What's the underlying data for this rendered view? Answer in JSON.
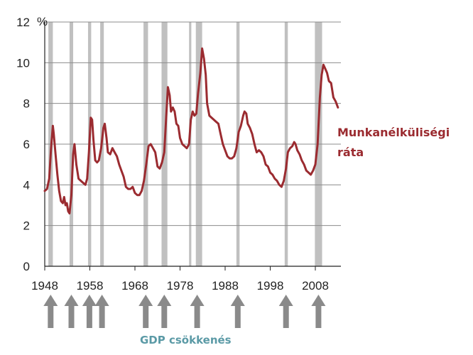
{
  "chart_data": {
    "type": "line",
    "ylabel": "%",
    "ylim": [
      0,
      12
    ],
    "xlim": [
      1948,
      2014
    ],
    "grid": true,
    "y_ticks": [
      0,
      2,
      4,
      6,
      8,
      10,
      12
    ],
    "x_ticks": [
      1948,
      1958,
      1968,
      1978,
      1988,
      1998,
      2008
    ],
    "series": [
      {
        "name": "Munkanélküliségi ráta",
        "color": "#9b2b30",
        "points": [
          [
            1948.0,
            3.7
          ],
          [
            1948.5,
            3.8
          ],
          [
            1949.0,
            4.3
          ],
          [
            1949.4,
            5.8
          ],
          [
            1949.8,
            6.9
          ],
          [
            1950.0,
            6.5
          ],
          [
            1950.4,
            5.5
          ],
          [
            1950.8,
            4.5
          ],
          [
            1951.2,
            3.7
          ],
          [
            1951.6,
            3.2
          ],
          [
            1952.0,
            3.1
          ],
          [
            1952.3,
            3.4
          ],
          [
            1952.6,
            3.0
          ],
          [
            1952.9,
            3.1
          ],
          [
            1953.2,
            2.7
          ],
          [
            1953.5,
            2.6
          ],
          [
            1953.9,
            3.5
          ],
          [
            1954.3,
            5.5
          ],
          [
            1954.6,
            6.0
          ],
          [
            1955.0,
            5.0
          ],
          [
            1955.5,
            4.3
          ],
          [
            1956.0,
            4.2
          ],
          [
            1956.5,
            4.1
          ],
          [
            1957.0,
            4.0
          ],
          [
            1957.4,
            4.3
          ],
          [
            1957.8,
            5.6
          ],
          [
            1958.2,
            7.3
          ],
          [
            1958.5,
            7.2
          ],
          [
            1958.8,
            6.2
          ],
          [
            1959.2,
            5.2
          ],
          [
            1959.6,
            5.1
          ],
          [
            1960.0,
            5.2
          ],
          [
            1960.5,
            5.8
          ],
          [
            1961.0,
            6.8
          ],
          [
            1961.3,
            7.0
          ],
          [
            1961.7,
            6.3
          ],
          [
            1962.0,
            5.6
          ],
          [
            1962.5,
            5.5
          ],
          [
            1963.0,
            5.8
          ],
          [
            1963.5,
            5.6
          ],
          [
            1964.0,
            5.4
          ],
          [
            1964.5,
            5.0
          ],
          [
            1965.0,
            4.7
          ],
          [
            1965.5,
            4.4
          ],
          [
            1966.0,
            3.9
          ],
          [
            1966.5,
            3.8
          ],
          [
            1967.0,
            3.8
          ],
          [
            1967.5,
            3.9
          ],
          [
            1968.0,
            3.6
          ],
          [
            1968.5,
            3.5
          ],
          [
            1969.0,
            3.5
          ],
          [
            1969.5,
            3.7
          ],
          [
            1970.0,
            4.2
          ],
          [
            1970.5,
            5.0
          ],
          [
            1971.0,
            5.9
          ],
          [
            1971.5,
            6.0
          ],
          [
            1972.0,
            5.8
          ],
          [
            1972.5,
            5.6
          ],
          [
            1973.0,
            4.9
          ],
          [
            1973.5,
            4.8
          ],
          [
            1974.0,
            5.1
          ],
          [
            1974.5,
            5.6
          ],
          [
            1974.9,
            7.2
          ],
          [
            1975.3,
            8.8
          ],
          [
            1975.7,
            8.4
          ],
          [
            1976.0,
            7.6
          ],
          [
            1976.4,
            7.8
          ],
          [
            1976.8,
            7.6
          ],
          [
            1977.2,
            7.0
          ],
          [
            1977.6,
            6.9
          ],
          [
            1978.0,
            6.3
          ],
          [
            1978.5,
            6.0
          ],
          [
            1979.0,
            5.9
          ],
          [
            1979.5,
            5.8
          ],
          [
            1980.0,
            6.0
          ],
          [
            1980.4,
            7.2
          ],
          [
            1980.8,
            7.6
          ],
          [
            1981.2,
            7.4
          ],
          [
            1981.6,
            7.5
          ],
          [
            1982.0,
            8.5
          ],
          [
            1982.5,
            9.5
          ],
          [
            1982.9,
            10.7
          ],
          [
            1983.3,
            10.2
          ],
          [
            1983.7,
            9.4
          ],
          [
            1984.0,
            8.0
          ],
          [
            1984.5,
            7.4
          ],
          [
            1985.0,
            7.3
          ],
          [
            1985.5,
            7.2
          ],
          [
            1986.0,
            7.1
          ],
          [
            1986.5,
            7.0
          ],
          [
            1987.0,
            6.5
          ],
          [
            1987.5,
            6.0
          ],
          [
            1988.0,
            5.7
          ],
          [
            1988.5,
            5.4
          ],
          [
            1989.0,
            5.3
          ],
          [
            1989.5,
            5.3
          ],
          [
            1990.0,
            5.4
          ],
          [
            1990.5,
            5.8
          ],
          [
            1991.0,
            6.6
          ],
          [
            1991.5,
            6.9
          ],
          [
            1992.0,
            7.4
          ],
          [
            1992.3,
            7.6
          ],
          [
            1992.7,
            7.5
          ],
          [
            1993.0,
            7.0
          ],
          [
            1993.5,
            6.8
          ],
          [
            1994.0,
            6.5
          ],
          [
            1994.5,
            6.0
          ],
          [
            1995.0,
            5.6
          ],
          [
            1995.5,
            5.7
          ],
          [
            1996.0,
            5.6
          ],
          [
            1996.5,
            5.4
          ],
          [
            1997.0,
            5.0
          ],
          [
            1997.5,
            4.9
          ],
          [
            1998.0,
            4.6
          ],
          [
            1998.5,
            4.5
          ],
          [
            1999.0,
            4.3
          ],
          [
            1999.5,
            4.2
          ],
          [
            2000.0,
            4.0
          ],
          [
            2000.5,
            3.9
          ],
          [
            2001.0,
            4.2
          ],
          [
            2001.5,
            4.8
          ],
          [
            2001.9,
            5.6
          ],
          [
            2002.4,
            5.8
          ],
          [
            2002.9,
            5.9
          ],
          [
            2003.3,
            6.1
          ],
          [
            2003.6,
            6.0
          ],
          [
            2004.0,
            5.7
          ],
          [
            2004.5,
            5.5
          ],
          [
            2005.0,
            5.2
          ],
          [
            2005.5,
            5.0
          ],
          [
            2006.0,
            4.7
          ],
          [
            2006.5,
            4.6
          ],
          [
            2007.0,
            4.5
          ],
          [
            2007.5,
            4.7
          ],
          [
            2008.0,
            5.0
          ],
          [
            2008.5,
            6.0
          ],
          [
            2009.0,
            8.3
          ],
          [
            2009.4,
            9.4
          ],
          [
            2009.8,
            9.9
          ],
          [
            2010.2,
            9.7
          ],
          [
            2010.6,
            9.5
          ],
          [
            2011.0,
            9.1
          ],
          [
            2011.5,
            9.0
          ],
          [
            2012.0,
            8.3
          ],
          [
            2012.5,
            8.1
          ],
          [
            2013.0,
            7.8
          ]
        ]
      }
    ],
    "recessions": [
      [
        1948.8,
        1949.8
      ],
      [
        1953.5,
        1954.3
      ],
      [
        1957.6,
        1958.3
      ],
      [
        1960.3,
        1961.1
      ],
      [
        1969.9,
        1970.9
      ],
      [
        1973.9,
        1975.2
      ],
      [
        1980.0,
        1980.5
      ],
      [
        1981.5,
        1982.9
      ],
      [
        1990.5,
        1991.2
      ],
      [
        2001.2,
        2001.9
      ],
      [
        2007.9,
        2009.5
      ]
    ],
    "recession_color": "#c0c0c0",
    "arrow_years": [
      1949.3,
      1953.9,
      1957.9,
      1960.7,
      1970.4,
      1974.5,
      1981.8,
      1990.8,
      2001.5,
      2008.7
    ],
    "arrow_color": "#8a8a8a",
    "series_label_lines": [
      "Munkanélküliségi",
      "ráta"
    ],
    "arrow_caption": "GDP csökkenés",
    "caption_color": "#5b9aa6"
  }
}
